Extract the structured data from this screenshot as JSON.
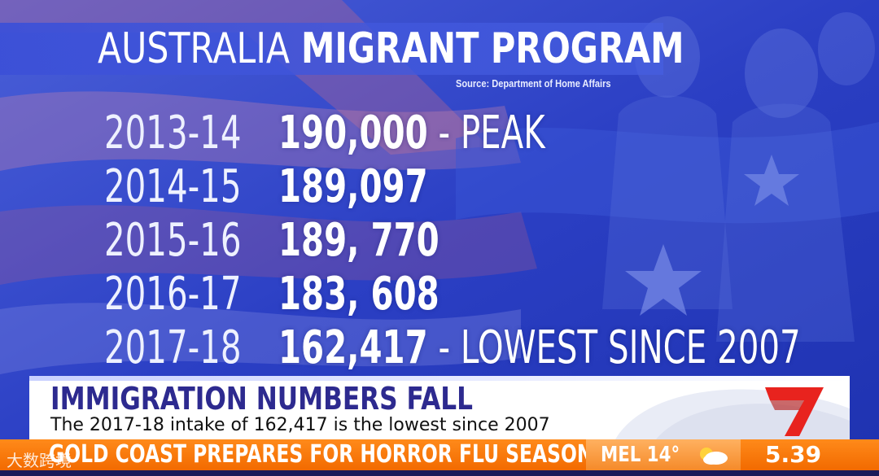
{
  "title": {
    "light": "AUSTRALIA",
    "bold": "MIGRANT PROGRAM"
  },
  "source": "Source: Department of Home Affairs",
  "rows": [
    {
      "year": "2013-14",
      "value": "190,000",
      "note": " - PEAK"
    },
    {
      "year": "2014-15",
      "value": "189,097",
      "note": ""
    },
    {
      "year": "2015-16",
      "value": "189, 770",
      "note": ""
    },
    {
      "year": "2016-17",
      "value": "183, 608",
      "note": ""
    },
    {
      "year": "2017-18",
      "value": "162,417",
      "note": " - LOWEST SINCE 2007"
    }
  ],
  "lower_third": {
    "headline": "IMMIGRATION NUMBERS FALL",
    "subline": "The 2017-18 intake of 162,417 is the lowest since 2007"
  },
  "ticker": {
    "text": "GOLD COAST PREPARES FOR HORROR FLU SEASON",
    "weather_city": "MEL 14°",
    "weather_icon": "partly-cloudy-icon",
    "time": "5.39"
  },
  "watermark": "大数跨境",
  "colors": {
    "background": "#2a43c8",
    "headline": "#2d2a8f",
    "ticker": "#f26a00",
    "logo": "#e8231e"
  }
}
